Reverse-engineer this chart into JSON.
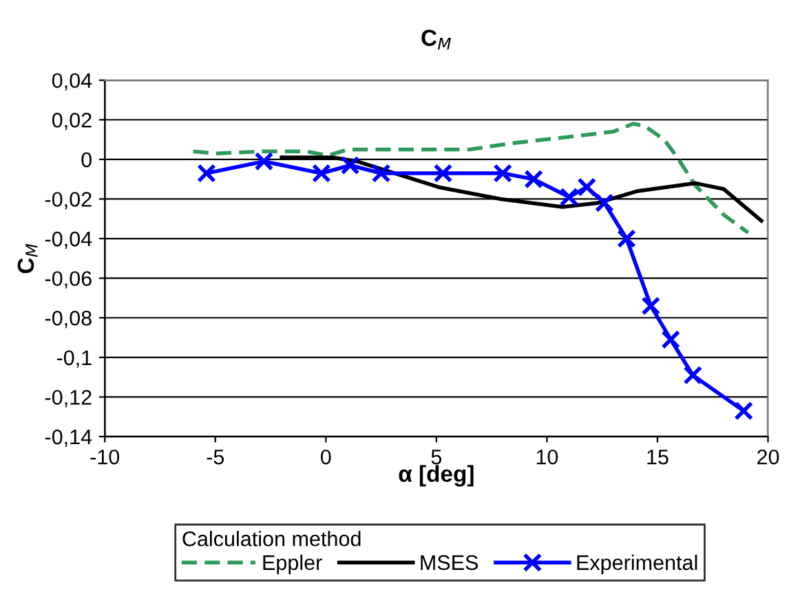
{
  "chart_data": {
    "type": "line",
    "title": "C$_{M}$",
    "xlabel": "α [deg]",
    "ylabel": "C$_{M}$",
    "legend_title": "Calculation method",
    "xlim": [
      -10,
      20
    ],
    "xticks": [
      -10,
      -5,
      0,
      5,
      10,
      15,
      20
    ],
    "ylim": [
      -0.14,
      0.04
    ],
    "yticks": [
      {
        "value": -0.14,
        "label": "-0,14"
      },
      {
        "value": -0.12,
        "label": "-0,12"
      },
      {
        "value": -0.1,
        "label": "-0,1"
      },
      {
        "value": -0.08,
        "label": "-0,08"
      },
      {
        "value": -0.06,
        "label": "-0,06"
      },
      {
        "value": -0.04,
        "label": "-0,04"
      },
      {
        "value": -0.02,
        "label": "-0,02"
      },
      {
        "value": 0,
        "label": "0"
      },
      {
        "value": 0.02,
        "label": "0,02"
      },
      {
        "value": 0.04,
        "label": "0,04"
      }
    ],
    "grid": "y",
    "legend": "bottom",
    "series": [
      {
        "name": "Eppler",
        "color": "#2e9a5c",
        "line_style": "dashed",
        "marker": "none",
        "x": [
          -6.0,
          -5.0,
          -2.9,
          -0.9,
          0.1,
          1.0,
          5.1,
          6.5,
          8.3,
          10.7,
          13.0,
          13.9,
          14.4,
          15.3,
          15.9,
          16.7,
          18.0,
          19.1
        ],
        "values": [
          0.004,
          0.003,
          0.004,
          0.004,
          0.002,
          0.005,
          0.005,
          0.005,
          0.008,
          0.011,
          0.014,
          0.018,
          0.017,
          0.01,
          0.001,
          -0.013,
          -0.028,
          -0.037
        ]
      },
      {
        "name": "MSES",
        "color": "#000000",
        "line_style": "solid",
        "marker": "none",
        "x": [
          -2.0,
          0.3,
          1.4,
          5.1,
          7.9,
          10.7,
          12.3,
          14.1,
          16.7,
          18.0,
          19.7
        ],
        "values": [
          0.001,
          0.001,
          -0.001,
          -0.014,
          -0.02,
          -0.024,
          -0.022,
          -0.016,
          -0.012,
          -0.015,
          -0.031
        ]
      },
      {
        "name": "Experimental",
        "color": "#0000ff",
        "line_style": "solid",
        "marker": "cross",
        "x": [
          -5.4,
          -2.8,
          -0.2,
          1.1,
          2.5,
          5.3,
          8.0,
          9.4,
          11.0,
          11.8,
          12.6,
          13.6,
          14.7,
          15.6,
          16.6,
          18.9
        ],
        "values": [
          -0.007,
          -0.001,
          -0.007,
          -0.003,
          -0.007,
          -0.007,
          -0.007,
          -0.01,
          -0.019,
          -0.014,
          -0.022,
          -0.04,
          -0.074,
          -0.091,
          -0.109,
          -0.127
        ]
      }
    ]
  }
}
